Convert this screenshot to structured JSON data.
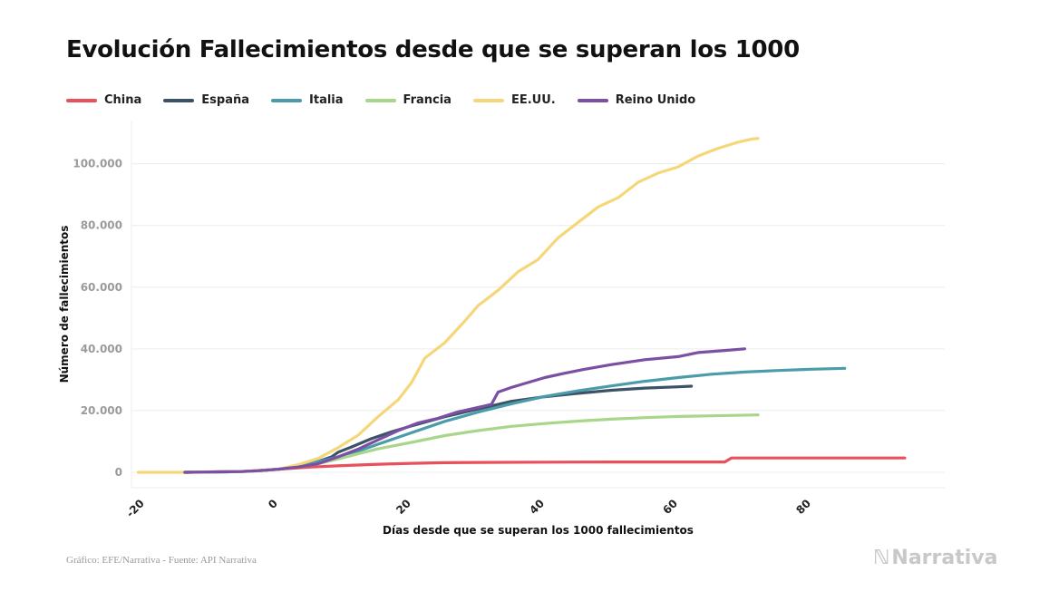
{
  "title": "Evolución Fallecimientos desde que se superan los 1000",
  "footer": {
    "source": "Gráfico: EFE/Narrativa - Fuente: API Narrativa",
    "logo": "Narrativa"
  },
  "chart_data": {
    "type": "line",
    "title": "Evolución Fallecimientos desde que se superan los 1000",
    "xlabel": "Días desde que se superan los 1000 fallecimientos",
    "ylabel": "Número de fallecimientos",
    "xlim": [
      -22,
      100
    ],
    "ylim": [
      -5000,
      114000
    ],
    "xticks": [
      -20,
      0,
      20,
      40,
      60,
      80
    ],
    "xtick_labels": [
      "-20",
      "0",
      "20",
      "40",
      "60",
      "80"
    ],
    "yticks": [
      0,
      20000,
      40000,
      60000,
      80000,
      100000
    ],
    "ytick_labels": [
      "0",
      "20.000",
      "40.000",
      "60.000",
      "80.000",
      "100.000"
    ],
    "grid": true,
    "legend_position": "top-left",
    "series": [
      {
        "name": "China",
        "color": "#e8505b",
        "x": [
          -14,
          -5,
          0,
          5,
          10,
          15,
          20,
          25,
          30,
          40,
          50,
          60,
          67,
          68,
          75,
          85,
          94
        ],
        "y": [
          0,
          300,
          1000,
          1700,
          2200,
          2600,
          2900,
          3100,
          3200,
          3300,
          3330,
          3340,
          3345,
          4630,
          4634,
          4636,
          4637
        ]
      },
      {
        "name": "España",
        "color": "#3d5266",
        "x": [
          -14,
          -6,
          -3,
          0,
          3,
          6,
          8,
          9,
          11,
          14,
          17,
          20,
          25,
          30,
          35,
          40,
          45,
          50,
          55,
          60,
          62
        ],
        "y": [
          0,
          200,
          500,
          1000,
          1800,
          3500,
          5000,
          6500,
          8200,
          10900,
          13100,
          15000,
          18000,
          20500,
          23000,
          24500,
          25600,
          26600,
          27300,
          27700,
          27900
        ]
      },
      {
        "name": "Italia",
        "color": "#4a9cab",
        "x": [
          -14,
          -6,
          -3,
          0,
          3,
          6,
          9,
          12,
          15,
          20,
          25,
          30,
          35,
          40,
          45,
          50,
          55,
          60,
          65,
          70,
          75,
          80,
          85
        ],
        "y": [
          0,
          200,
          500,
          1000,
          2000,
          3400,
          5000,
          6800,
          9100,
          12800,
          16500,
          19500,
          22200,
          24600,
          26400,
          28000,
          29500,
          30700,
          31800,
          32500,
          33000,
          33400,
          33700
        ]
      },
      {
        "name": "Francia",
        "color": "#a8d68b",
        "x": [
          -14,
          -6,
          -3,
          0,
          3,
          6,
          9,
          12,
          15,
          20,
          25,
          30,
          35,
          40,
          45,
          50,
          55,
          60,
          65,
          72
        ],
        "y": [
          0,
          200,
          500,
          1000,
          1700,
          2800,
          4300,
          6000,
          7600,
          9700,
          11900,
          13500,
          14900,
          15800,
          16600,
          17200,
          17700,
          18100,
          18300,
          18600
        ]
      },
      {
        "name": "EE.UU.",
        "color": "#f5d77a",
        "x": [
          -21,
          -14,
          -6,
          -3,
          0,
          3,
          6,
          9,
          12,
          15,
          18,
          20,
          22,
          25,
          28,
          30,
          33,
          36,
          39,
          42,
          45,
          48,
          51,
          54,
          57,
          60,
          63,
          66,
          69,
          71,
          72
        ],
        "y": [
          0,
          0,
          200,
          500,
          1000,
          2500,
          4500,
          8000,
          12000,
          18000,
          23500,
          29000,
          37000,
          42000,
          49000,
          54000,
          59000,
          65000,
          69000,
          76000,
          81000,
          86000,
          89000,
          94000,
          97000,
          99000,
          102500,
          105000,
          107000,
          108000,
          108200
        ]
      },
      {
        "name": "Reino Unido",
        "color": "#7b4fa3",
        "x": [
          -14,
          -6,
          -3,
          0,
          3,
          6,
          9,
          12,
          15,
          18,
          21,
          24,
          27,
          30,
          31,
          32,
          33,
          35,
          37,
          40,
          43,
          46,
          50,
          55,
          60,
          63,
          67,
          70
        ],
        "y": [
          0,
          200,
          500,
          1000,
          1700,
          2800,
          5000,
          7500,
          10500,
          13500,
          16000,
          17500,
          19600,
          21000,
          21500,
          22000,
          26000,
          27500,
          28800,
          30700,
          32100,
          33400,
          34900,
          36500,
          37500,
          38800,
          39500,
          40000
        ]
      }
    ]
  }
}
